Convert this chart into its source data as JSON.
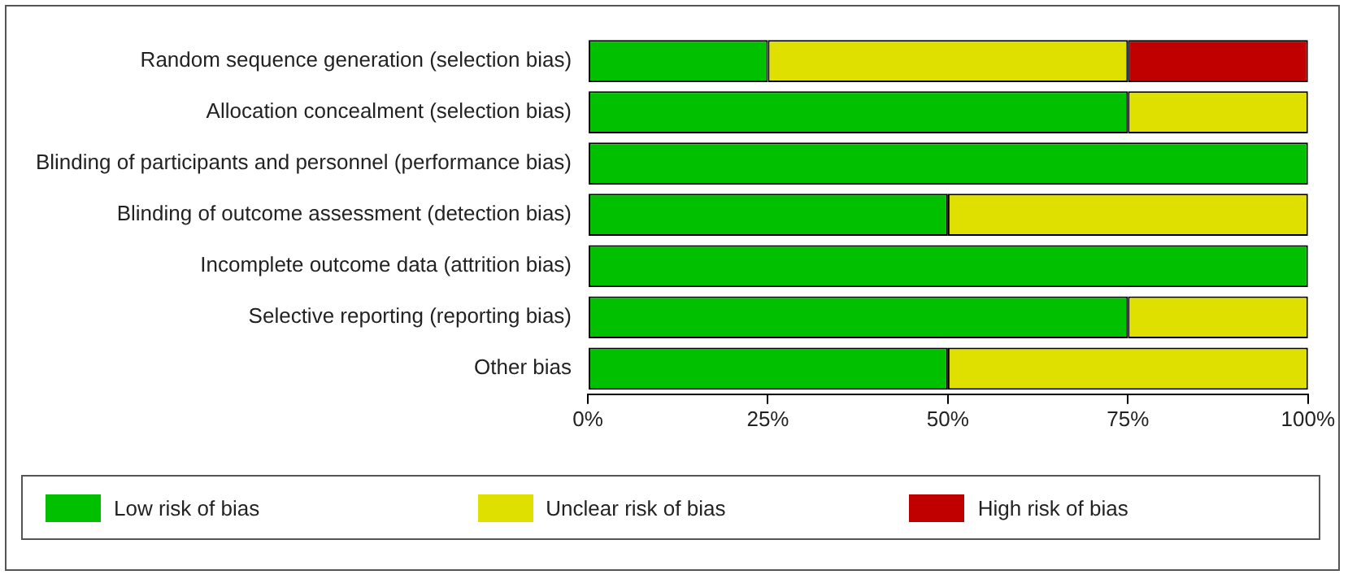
{
  "chart_data": {
    "type": "bar",
    "orientation": "horizontal",
    "stacked": true,
    "categories": [
      "Random sequence generation (selection bias)",
      "Allocation concealment (selection bias)",
      "Blinding of participants and personnel (performance bias)",
      "Blinding of outcome assessment (detection bias)",
      "Incomplete outcome data (attrition bias)",
      "Selective reporting (reporting bias)",
      "Other bias"
    ],
    "series": [
      {
        "name": "Low risk of bias",
        "color": "#00c000",
        "values": [
          25,
          75,
          100,
          50,
          100,
          75,
          50
        ]
      },
      {
        "name": "Unclear risk of bias",
        "color": "#e0e000",
        "values": [
          50,
          25,
          0,
          50,
          0,
          25,
          50
        ]
      },
      {
        "name": "High risk of bias",
        "color": "#c00000",
        "values": [
          25,
          0,
          0,
          0,
          0,
          0,
          0
        ]
      }
    ],
    "xlim": [
      0,
      100
    ],
    "xticks": [
      {
        "value": 0,
        "label": "0%"
      },
      {
        "value": 25,
        "label": "25%"
      },
      {
        "value": 50,
        "label": "50%"
      },
      {
        "value": 75,
        "label": "75%"
      },
      {
        "value": 100,
        "label": "100%"
      }
    ],
    "grid": false,
    "legend": "bottom"
  }
}
